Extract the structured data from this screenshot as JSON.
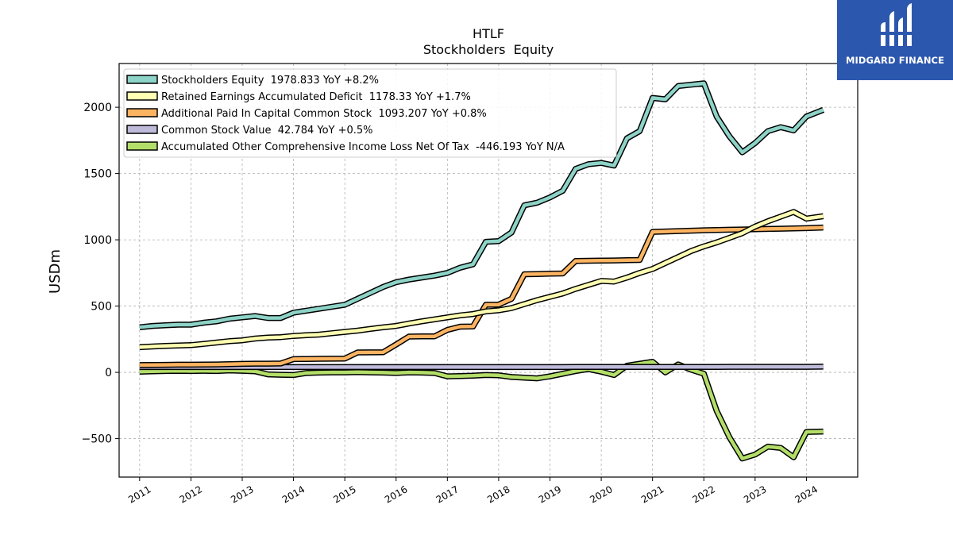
{
  "logo": {
    "text": "MIDGARD FINANCE",
    "background": "#2c57ae",
    "icon": "midgard-logo-icon"
  },
  "chart_data": {
    "type": "line",
    "title": "HTLF",
    "subtitle": "Stockholders  Equity",
    "xlabel": "",
    "ylabel": "USDm",
    "xlim": [
      2010.6,
      2025.0
    ],
    "ylim": [
      -790,
      2330
    ],
    "x_ticks": [
      2011,
      2012,
      2013,
      2014,
      2015,
      2016,
      2017,
      2018,
      2019,
      2020,
      2021,
      2022,
      2023,
      2024
    ],
    "x_tick_labels": [
      "2011",
      "2012",
      "2013",
      "2014",
      "2015",
      "2016",
      "2017",
      "2018",
      "2019",
      "2020",
      "2021",
      "2022",
      "2023",
      "2024"
    ],
    "y_ticks": [
      -500,
      0,
      500,
      1000,
      1500,
      2000
    ],
    "y_tick_labels": [
      "−500",
      "0",
      "500",
      "1000",
      "1500",
      "2000"
    ],
    "grid": true,
    "legend_position": "top-left",
    "x": [
      2011.0,
      2011.25,
      2011.5,
      2011.75,
      2012.0,
      2012.25,
      2012.5,
      2012.75,
      2013.0,
      2013.25,
      2013.5,
      2013.75,
      2014.0,
      2014.25,
      2014.5,
      2014.75,
      2015.0,
      2015.25,
      2015.5,
      2015.75,
      2016.0,
      2016.25,
      2016.5,
      2016.75,
      2017.0,
      2017.25,
      2017.5,
      2017.75,
      2018.0,
      2018.25,
      2018.5,
      2018.75,
      2019.0,
      2019.25,
      2019.5,
      2019.75,
      2020.0,
      2020.25,
      2020.5,
      2020.75,
      2021.0,
      2021.25,
      2021.5,
      2021.75,
      2022.0,
      2022.25,
      2022.5,
      2022.75,
      2023.0,
      2023.25,
      2023.5,
      2023.75,
      2024.0,
      2024.33
    ],
    "series": [
      {
        "name": "Stockholders Equity  1978.833 YoY +8.2%",
        "color": "#8dd3c7",
        "values": [
          340,
          350,
          355,
          360,
          360,
          375,
          385,
          405,
          415,
          425,
          410,
          410,
          450,
          465,
          480,
          495,
          510,
          555,
          600,
          645,
          680,
          700,
          715,
          730,
          750,
          790,
          815,
          985,
          990,
          1055,
          1260,
          1280,
          1320,
          1370,
          1535,
          1570,
          1580,
          1560,
          1765,
          1820,
          2070,
          2060,
          2160,
          2170,
          2180,
          1930,
          1780,
          1660,
          1730,
          1820,
          1850,
          1825,
          1930,
          1980
        ]
      },
      {
        "name": "Retained Earnings Accumulated Deficit  1178.33 YoY +1.7%",
        "color": "#ffffb3",
        "values": [
          190,
          195,
          200,
          203,
          205,
          215,
          225,
          235,
          242,
          255,
          262,
          266,
          275,
          280,
          285,
          295,
          305,
          315,
          328,
          340,
          350,
          368,
          385,
          400,
          415,
          430,
          440,
          460,
          468,
          485,
          515,
          545,
          570,
          595,
          630,
          660,
          690,
          685,
          715,
          750,
          780,
          825,
          870,
          915,
          950,
          980,
          1015,
          1050,
          1100,
          1140,
          1175,
          1210,
          1160,
          1178
        ]
      },
      {
        "name": "Additional Paid In Capital Common Stock  1093.207 YoY +0.8%",
        "color": "#fdb462",
        "values": [
          55,
          56,
          57,
          58,
          58,
          59,
          60,
          62,
          64,
          66,
          66,
          67,
          100,
          101,
          102,
          103,
          104,
          150,
          151,
          152,
          210,
          270,
          271,
          272,
          320,
          345,
          346,
          510,
          511,
          555,
          740,
          742,
          744,
          746,
          840,
          842,
          843,
          844,
          846,
          848,
          1060,
          1063,
          1066,
          1069,
          1072,
          1074,
          1076,
          1078,
          1080,
          1082,
          1084,
          1086,
          1088,
          1093
        ]
      },
      {
        "name": "Common Stock Value  42.784 YoY +0.5%",
        "color": "#bebada",
        "values": [
          40,
          40,
          40,
          40,
          40,
          40,
          40,
          40,
          40,
          40,
          40,
          40,
          40,
          40,
          40,
          40,
          40,
          40,
          40,
          40,
          40,
          40,
          40,
          40,
          40,
          40,
          40,
          40,
          40,
          40,
          40,
          40,
          40,
          40,
          41,
          41,
          41,
          41,
          41,
          41,
          41,
          41,
          41,
          41,
          41,
          41,
          42,
          42,
          42,
          42,
          42,
          42,
          42,
          43
        ]
      },
      {
        "name": "Accumulated Other Comprehensive Income Loss Net Of Tax  -446.193 YoY N/A",
        "color": "#b3de69",
        "values": [
          5,
          8,
          10,
          12,
          10,
          12,
          10,
          15,
          12,
          8,
          -15,
          -18,
          -20,
          -5,
          -2,
          0,
          0,
          2,
          0,
          -2,
          -5,
          0,
          -2,
          -5,
          -30,
          -28,
          -25,
          -20,
          -22,
          -35,
          -40,
          -45,
          -30,
          -10,
          10,
          25,
          5,
          -20,
          50,
          65,
          80,
          0,
          60,
          20,
          -10,
          -290,
          -490,
          -650,
          -620,
          -560,
          -570,
          -640,
          -450,
          -446
        ]
      }
    ]
  }
}
